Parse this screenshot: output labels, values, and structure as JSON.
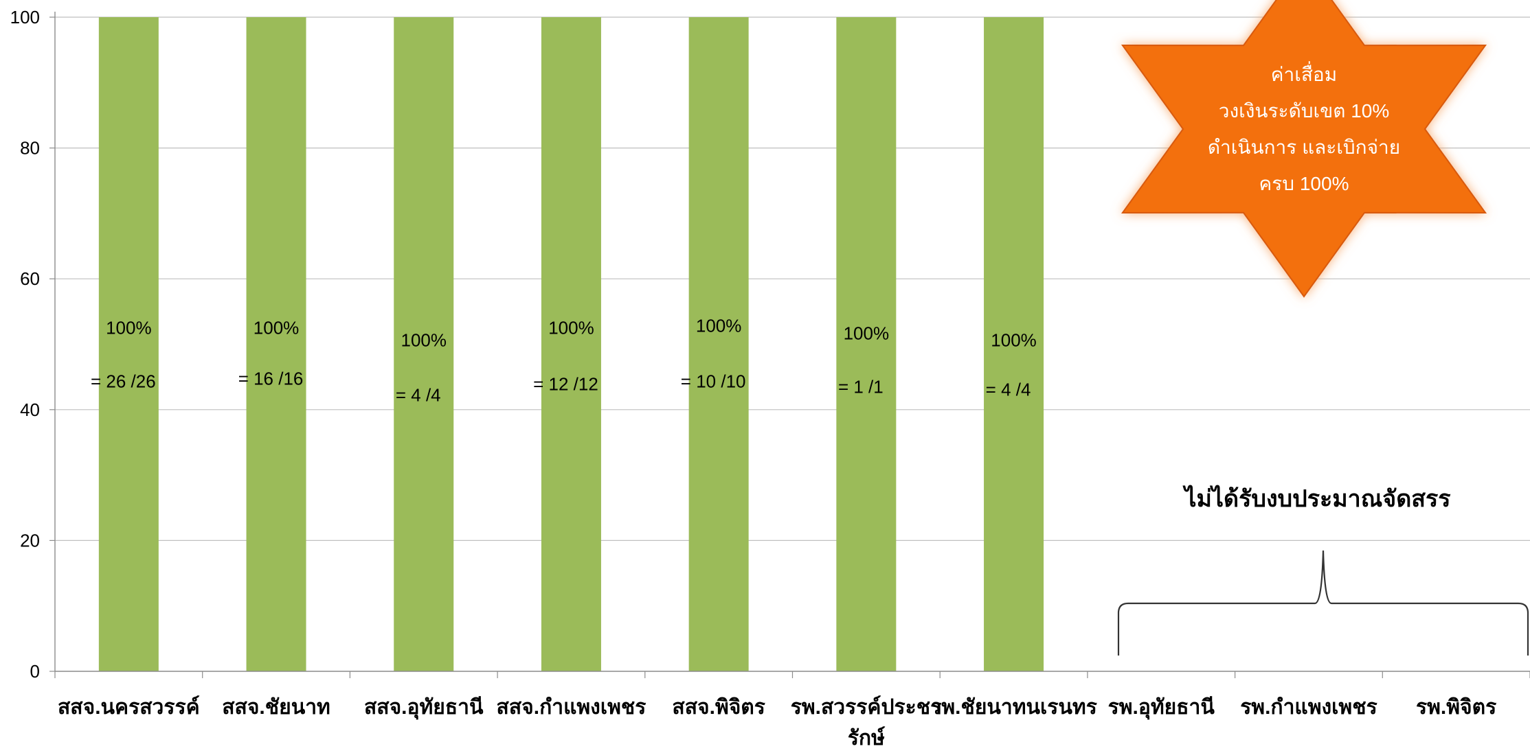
{
  "chart_data": {
    "type": "bar",
    "title": "",
    "xlabel": "",
    "ylabel": "",
    "ylim": [
      0,
      100
    ],
    "yticks": [
      0,
      20,
      40,
      60,
      80,
      100
    ],
    "grid": true,
    "bar_color": "#9bbb59",
    "categories": [
      "สสจ.นครสวรรค์",
      "สสจ.ชัยนาท",
      "สสจ.อุทัยธานี",
      "สสจ.กำแพงเพชร",
      "สสจ.พิจิตร",
      "รพ.สวรรค์ประชารักษ์",
      "รพ.ชัยนาทนเรนทร",
      "รพ.อุทัยธานี",
      "รพ.กำแพงเพชร",
      "รพ.พิจิตร"
    ],
    "category_lines": [
      [
        "สสจ.นครสวรรค์"
      ],
      [
        "สสจ.ชัยนาท"
      ],
      [
        "สสจ.อุทัยธานี"
      ],
      [
        "สสจ.กำแพงเพชร"
      ],
      [
        "สสจ.พิจิตร"
      ],
      [
        "รพ.สวรรค์ประชา",
        "รักษ์"
      ],
      [
        "รพ.ชัยนาทนเรนทร"
      ],
      [
        "รพ.อุทัยธานี"
      ],
      [
        "รพ.กำแพงเพชร"
      ],
      [
        "รพ.พิจิตร"
      ]
    ],
    "values": [
      100,
      100,
      100,
      100,
      100,
      100,
      100,
      null,
      null,
      null
    ],
    "data_labels": [
      {
        "percent": "100%",
        "ratio": "= 26 /26"
      },
      {
        "percent": "100%",
        "ratio": "= 16 /16"
      },
      {
        "percent": "100%",
        "ratio": "= 4 /4"
      },
      {
        "percent": "100%",
        "ratio": "= 12 /12"
      },
      {
        "percent": "100%",
        "ratio": "= 10 /10"
      },
      {
        "percent": "100%",
        "ratio": "= 1 /1"
      },
      {
        "percent": "100%",
        "ratio": "= 4 /4"
      },
      null,
      null,
      null
    ],
    "annotations": {
      "star": {
        "lines": [
          "ค่าเสื่อม",
          "วงเงินระดับเขต 10%",
          "ดำเนินการ และเบิกจ่าย",
          "ครบ 100%"
        ],
        "color": "#f36f10"
      },
      "bracket_note": "ไม่ได้รับงบประมาณจัดสรร"
    }
  }
}
